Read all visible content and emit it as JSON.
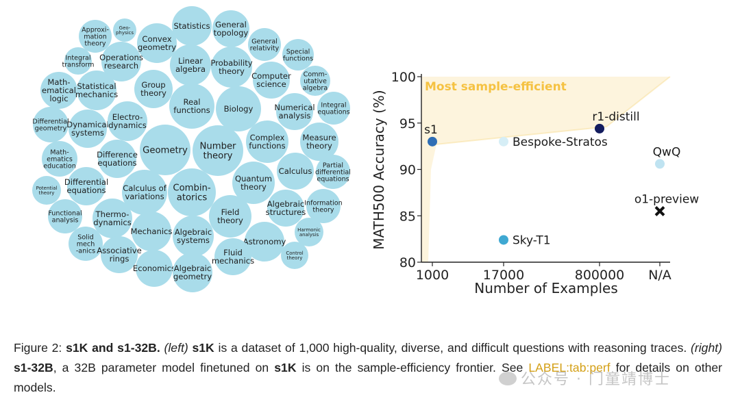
{
  "bubble_cloud": {
    "fill_color": "#a9dcea",
    "topics": [
      {
        "lines": [
          "Approxi-",
          "mation",
          "theory"
        ],
        "size": "s"
      },
      {
        "lines": [
          "Geo-",
          "physics"
        ],
        "size": "xs"
      },
      {
        "lines": [
          "Convex",
          "geometry"
        ],
        "size": "m"
      },
      {
        "lines": [
          "Statistics"
        ],
        "size": "m"
      },
      {
        "lines": [
          "General",
          "topology"
        ],
        "size": "m"
      },
      {
        "lines": [
          "General",
          "relativity"
        ],
        "size": "s"
      },
      {
        "lines": [
          "Special",
          "functions"
        ],
        "size": "s"
      },
      {
        "lines": [
          "Integral",
          "transform"
        ],
        "size": "s"
      },
      {
        "lines": [
          "Operations",
          "research"
        ],
        "size": "m"
      },
      {
        "lines": [
          "Linear",
          "algebra"
        ],
        "size": "m"
      },
      {
        "lines": [
          "Probability",
          "theory"
        ],
        "size": "m"
      },
      {
        "lines": [
          "Computer",
          "science"
        ],
        "size": "m"
      },
      {
        "lines": [
          "Comm-",
          "utative",
          "algebra"
        ],
        "size": "s"
      },
      {
        "lines": [
          "Math-",
          "ematical",
          "logic"
        ],
        "size": "m"
      },
      {
        "lines": [
          "Statistical",
          "mechanics"
        ],
        "size": "m"
      },
      {
        "lines": [
          "Group",
          "theory"
        ],
        "size": "m"
      },
      {
        "lines": [
          "Real",
          "functions"
        ],
        "size": "m"
      },
      {
        "lines": [
          "Biology"
        ],
        "size": "m"
      },
      {
        "lines": [
          "Numerical",
          "analysis"
        ],
        "size": "m"
      },
      {
        "lines": [
          "Integral",
          "equations"
        ],
        "size": "s"
      },
      {
        "lines": [
          "Differential",
          "geometry"
        ],
        "size": "s"
      },
      {
        "lines": [
          "Dynamical",
          "systems"
        ],
        "size": "m"
      },
      {
        "lines": [
          "Electro-",
          "dynamics"
        ],
        "size": "m"
      },
      {
        "lines": [
          "Complex",
          "functions"
        ],
        "size": "m"
      },
      {
        "lines": [
          "Measure",
          "theory"
        ],
        "size": "m"
      },
      {
        "lines": [
          "Geometry"
        ],
        "size": "l"
      },
      {
        "lines": [
          "Number",
          "theory"
        ],
        "size": "l"
      },
      {
        "lines": [
          "Math-",
          "ematics",
          "education"
        ],
        "size": "s"
      },
      {
        "lines": [
          "Difference",
          "equations"
        ],
        "size": "m"
      },
      {
        "lines": [
          "Quantum",
          "theory"
        ],
        "size": "m"
      },
      {
        "lines": [
          "Calculus"
        ],
        "size": "m"
      },
      {
        "lines": [
          "Partial",
          "differential",
          "equations"
        ],
        "size": "s"
      },
      {
        "lines": [
          "Potential",
          "theory"
        ],
        "size": "xs"
      },
      {
        "lines": [
          "Differential",
          "equations"
        ],
        "size": "m"
      },
      {
        "lines": [
          "Calculus of",
          "variations"
        ],
        "size": "m"
      },
      {
        "lines": [
          "Combin-",
          "atorics"
        ],
        "size": "l"
      },
      {
        "lines": [
          "Algebraic",
          "structures"
        ],
        "size": "m"
      },
      {
        "lines": [
          "Information",
          "theory"
        ],
        "size": "s"
      },
      {
        "lines": [
          "Functional",
          "analysis"
        ],
        "size": "s"
      },
      {
        "lines": [
          "Thermo-",
          "dynamics"
        ],
        "size": "m"
      },
      {
        "lines": [
          "Field",
          "theory"
        ],
        "size": "m"
      },
      {
        "lines": [
          "Solid",
          "mech",
          "-anics"
        ],
        "size": "s"
      },
      {
        "lines": [
          "Mechanics"
        ],
        "size": "m"
      },
      {
        "lines": [
          "Algebraic",
          "systems"
        ],
        "size": "m"
      },
      {
        "lines": [
          "Astronomy"
        ],
        "size": "m"
      },
      {
        "lines": [
          "Harmonic",
          "analysis"
        ],
        "size": "xs"
      },
      {
        "lines": [
          "Associative",
          "rings"
        ],
        "size": "m"
      },
      {
        "lines": [
          "Fluid",
          "mechanics"
        ],
        "size": "m"
      },
      {
        "lines": [
          "Control",
          "theory"
        ],
        "size": "xs"
      },
      {
        "lines": [
          "Economics"
        ],
        "size": "m"
      },
      {
        "lines": [
          "Algebraic",
          "geometry"
        ],
        "size": "m"
      }
    ]
  },
  "chart_data": {
    "type": "scatter",
    "xlabel": "Number of Examples",
    "ylabel": "MATH500 Accuracy (%)",
    "x_ticks": [
      "1000",
      "17000",
      "800000",
      "N/A"
    ],
    "y_ticks": [
      80,
      85,
      90,
      95,
      100
    ],
    "ylim": [
      80,
      100
    ],
    "region_label": "Most sample-efficient",
    "region_color": "#f5c242",
    "points": [
      {
        "name": "s1",
        "x": "1000",
        "y": 93.0,
        "color": "#2f6eb5",
        "marker": "circle"
      },
      {
        "name": "Bespoke-Stratos",
        "x": "17000",
        "y": 93.0,
        "color": "#d6eef6",
        "marker": "circle"
      },
      {
        "name": "r1-distill",
        "x": "800000",
        "y": 94.4,
        "color": "#131c5e",
        "marker": "circle"
      },
      {
        "name": "QwQ",
        "x": "N/A",
        "y": 90.6,
        "color": "#bfe3f1",
        "marker": "circle"
      },
      {
        "name": "o1-preview",
        "x": "N/A",
        "y": 85.5,
        "color": "#111111",
        "marker": "x"
      },
      {
        "name": "Sky-T1",
        "x": "17000",
        "y": 82.4,
        "color": "#3fa8d2",
        "marker": "circle"
      }
    ]
  },
  "caption": {
    "figure_label": "Figure 2:",
    "title": "s1K and s1-32B.",
    "left_tag": "(left)",
    "s1k_name": "s1K",
    "left_text": "is a dataset of 1,000 high-quality, diverse, and difficult questions with reasoning traces.",
    "right_tag": "(right)",
    "s1_32b_name": "s1-32B",
    "right_text_a": ", a 32B parameter model finetuned on",
    "s1k_name_2": "s1K",
    "right_text_b": "is on the sample-efficiency frontier. See",
    "ref_label": "LABEL:tab:perf",
    "tail": "for details on other models."
  },
  "watermark": {
    "text": "公众号 · 门童靖博士"
  }
}
